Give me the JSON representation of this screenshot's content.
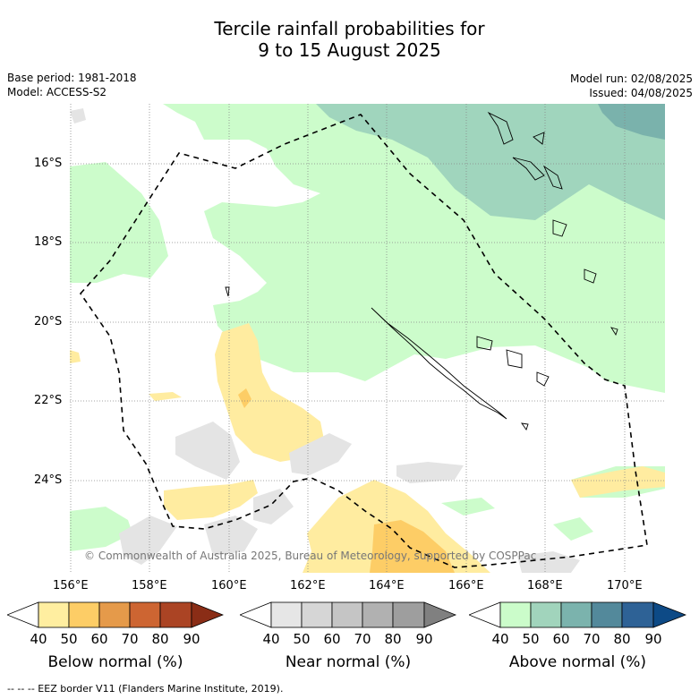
{
  "title_line1": "Tercile rainfall probabilities for",
  "title_line2": "9 to 15 August 2025",
  "meta": {
    "base_period": "Base period: 1981-2018",
    "model": "Model: ACCESS-S2",
    "model_run": "Model run: 02/08/2025",
    "issued": "Issued: 04/08/2025"
  },
  "lat_labels": [
    "16°S",
    "18°S",
    "20°S",
    "22°S",
    "24°S"
  ],
  "lon_labels": [
    "156°E",
    "158°E",
    "160°E",
    "162°E",
    "164°E",
    "166°E",
    "168°E",
    "170°E"
  ],
  "credit": "© Commonwealth of Australia 2025, Bureau of Meteorology, supported by COSPPac",
  "colorbars": [
    {
      "name": "below",
      "title": "Below normal (%)",
      "ticks": [
        "40",
        "50",
        "60",
        "70",
        "80",
        "90"
      ],
      "colors": [
        "#ffffff",
        "#ffeea0",
        "#fdcd66",
        "#e59a4a",
        "#cd6532",
        "#ab4424",
        "#8a2d16"
      ]
    },
    {
      "name": "near",
      "title": "Near normal (%)",
      "ticks": [
        "40",
        "50",
        "60",
        "70",
        "80",
        "90"
      ],
      "colors": [
        "#ffffff",
        "#e6e6e6",
        "#d6d6d6",
        "#c5c5c5",
        "#b1b1b1",
        "#9e9e9e",
        "#808080"
      ]
    },
    {
      "name": "above",
      "title": "Above normal (%)",
      "ticks": [
        "40",
        "50",
        "60",
        "70",
        "80",
        "90"
      ],
      "colors": [
        "#ffffff",
        "#cbfcca",
        "#a1d4bc",
        "#7bb3ad",
        "#53899b",
        "#2e6296",
        "#0d4a86"
      ]
    }
  ],
  "colors": {
    "above_50": "#ccfccb",
    "above_60": "#a0d5bd",
    "above_70": "#7ab2ac",
    "below_50": "#ffeca0",
    "below_60": "#fdcd66",
    "near_50": "#e4e4e4"
  },
  "footnote": "--  --  -- EEZ border V11 (Flanders Marine Institute, 2019)."
}
